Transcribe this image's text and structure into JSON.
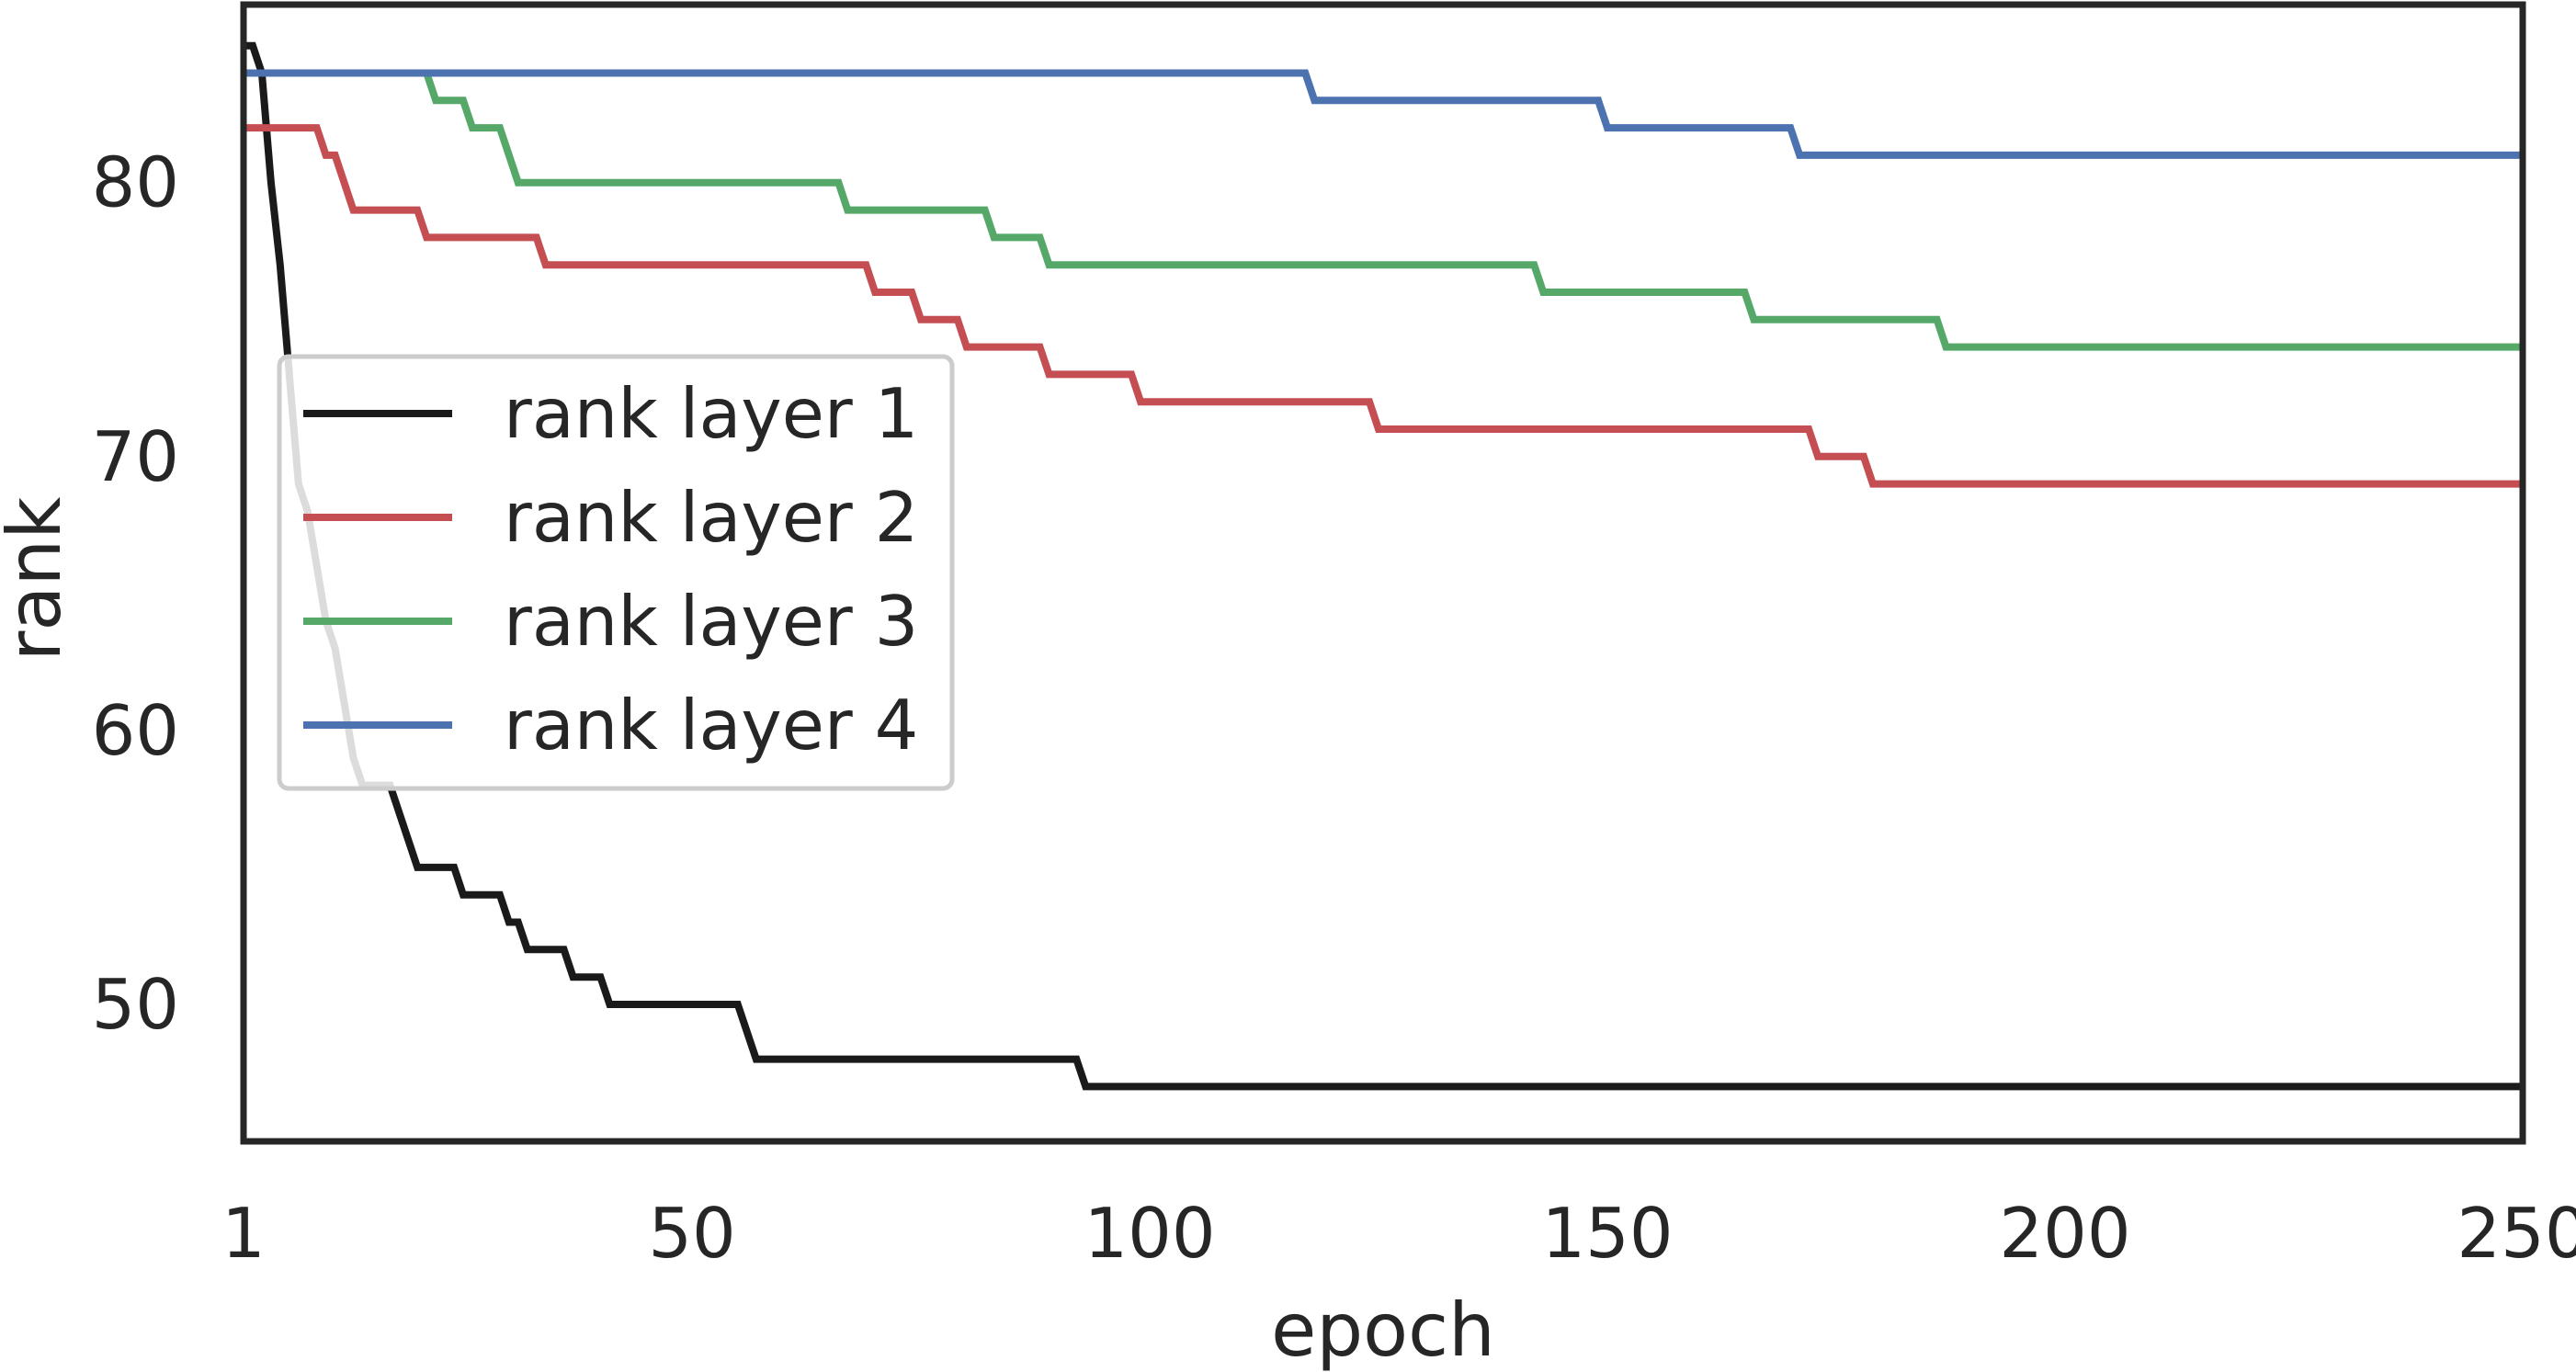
{
  "chart_data": {
    "type": "line",
    "title": "",
    "xlabel": "epoch",
    "ylabel": "rank",
    "xlim": [
      1,
      250
    ],
    "ylim": [
      45,
      86.5
    ],
    "xticks": [
      1,
      50,
      100,
      150,
      200,
      250
    ],
    "yticks": [
      50,
      60,
      70,
      80
    ],
    "xtick_labels": [
      "1",
      "50",
      "100",
      "150",
      "200",
      "250"
    ],
    "ytick_labels": [
      "50",
      "60",
      "70",
      "80"
    ],
    "grid": false,
    "legend_position": "center-left",
    "series": [
      {
        "name": "rank layer 1",
        "color": "#1a1a1a",
        "points": [
          [
            1,
            85
          ],
          [
            2,
            85
          ],
          [
            3,
            84
          ],
          [
            4,
            80
          ],
          [
            5,
            77
          ],
          [
            6,
            73
          ],
          [
            7,
            69
          ],
          [
            8,
            68
          ],
          [
            9,
            66
          ],
          [
            10,
            64
          ],
          [
            11,
            63
          ],
          [
            12,
            61
          ],
          [
            13,
            59
          ],
          [
            14,
            58
          ],
          [
            17,
            58
          ],
          [
            20,
            55
          ],
          [
            24,
            55
          ],
          [
            25,
            54
          ],
          [
            29,
            54
          ],
          [
            30,
            53
          ],
          [
            31,
            53
          ],
          [
            32,
            52
          ],
          [
            36,
            52
          ],
          [
            37,
            51
          ],
          [
            40,
            51
          ],
          [
            41,
            50
          ],
          [
            55,
            50
          ],
          [
            57,
            48
          ],
          [
            92,
            48
          ],
          [
            93,
            47
          ],
          [
            250,
            47
          ]
        ]
      },
      {
        "name": "rank layer 2",
        "color": "#c44e52",
        "points": [
          [
            1,
            82
          ],
          [
            9,
            82
          ],
          [
            10,
            81
          ],
          [
            11,
            81
          ],
          [
            13,
            79
          ],
          [
            20,
            79
          ],
          [
            21,
            78
          ],
          [
            33,
            78
          ],
          [
            34,
            77
          ],
          [
            69,
            77
          ],
          [
            70,
            76
          ],
          [
            74,
            76
          ],
          [
            75,
            75
          ],
          [
            79,
            75
          ],
          [
            80,
            74
          ],
          [
            88,
            74
          ],
          [
            89,
            73
          ],
          [
            98,
            73
          ],
          [
            99,
            72
          ],
          [
            124,
            72
          ],
          [
            125,
            71
          ],
          [
            172,
            71
          ],
          [
            173,
            70
          ],
          [
            178,
            70
          ],
          [
            179,
            69
          ],
          [
            250,
            69
          ]
        ]
      },
      {
        "name": "rank layer 3",
        "color": "#55a868",
        "points": [
          [
            1,
            84
          ],
          [
            21,
            84
          ],
          [
            22,
            83
          ],
          [
            25,
            83
          ],
          [
            26,
            82
          ],
          [
            29,
            82
          ],
          [
            31,
            80
          ],
          [
            66,
            80
          ],
          [
            67,
            79
          ],
          [
            82,
            79
          ],
          [
            83,
            78
          ],
          [
            88,
            78
          ],
          [
            89,
            77
          ],
          [
            142,
            77
          ],
          [
            143,
            76
          ],
          [
            165,
            76
          ],
          [
            166,
            75
          ],
          [
            186,
            75
          ],
          [
            187,
            74
          ],
          [
            250,
            74
          ]
        ]
      },
      {
        "name": "rank layer 4",
        "color": "#4c72b0",
        "points": [
          [
            1,
            84
          ],
          [
            117,
            84
          ],
          [
            118,
            83
          ],
          [
            149,
            83
          ],
          [
            150,
            82
          ],
          [
            170,
            82
          ],
          [
            171,
            81
          ],
          [
            250,
            81
          ]
        ]
      }
    ]
  }
}
